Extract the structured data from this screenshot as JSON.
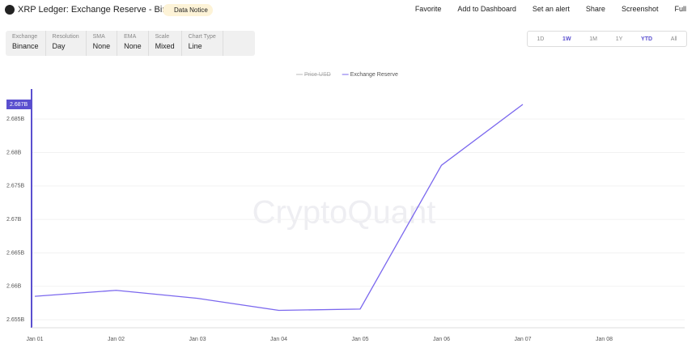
{
  "header": {
    "title": "XRP Ledger: Exchange Reserve - Binance",
    "notice": "Data Notice",
    "actions": [
      "Favorite",
      "Add to Dashboard",
      "Set an alert",
      "Share",
      "Screenshot",
      "Full"
    ]
  },
  "controls": [
    {
      "label": "Exchange",
      "value": "Binance"
    },
    {
      "label": "Resolution",
      "value": "Day"
    },
    {
      "label": "SMA",
      "value": "None"
    },
    {
      "label": "EMA",
      "value": "None"
    },
    {
      "label": "Scale",
      "value": "Mixed"
    },
    {
      "label": "Chart Type",
      "value": "Line"
    }
  ],
  "ranges": {
    "options": [
      "1D",
      "1W",
      "1M",
      "1Y",
      "YTD",
      "All"
    ],
    "active": [
      "1W",
      "YTD"
    ]
  },
  "chart_data": {
    "type": "line",
    "watermark": "CryptoQuant",
    "categories": [
      "Jan 01",
      "Jan 02",
      "Jan 03",
      "Jan 04",
      "Jan 05",
      "Jan 06",
      "Jan 07",
      "Jan 08"
    ],
    "series": [
      {
        "name": "Price USD",
        "color": "#bbbbbb",
        "hidden": true,
        "values": [
          null,
          null,
          null,
          null,
          null,
          null,
          null,
          null
        ]
      },
      {
        "name": "Exchange Reserve",
        "color": "#7b68ee",
        "values": [
          2.6585,
          2.6594,
          2.6582,
          2.6564,
          2.6566,
          2.6781,
          2.6872,
          null
        ],
        "value_labels": [
          null,
          null,
          null,
          null,
          null,
          null,
          "2.687B",
          null
        ]
      }
    ],
    "ylim": [
      2.6538,
      2.6895
    ],
    "yticks": [
      {
        "value": 2.655,
        "label": "2.655B"
      },
      {
        "value": 2.66,
        "label": "2.66B"
      },
      {
        "value": 2.665,
        "label": "2.665B"
      },
      {
        "value": 2.67,
        "label": "2.67B"
      },
      {
        "value": 2.675,
        "label": "2.675B"
      },
      {
        "value": 2.68,
        "label": "2.68B"
      },
      {
        "value": 2.685,
        "label": "2.685B"
      }
    ],
    "grid": true
  }
}
